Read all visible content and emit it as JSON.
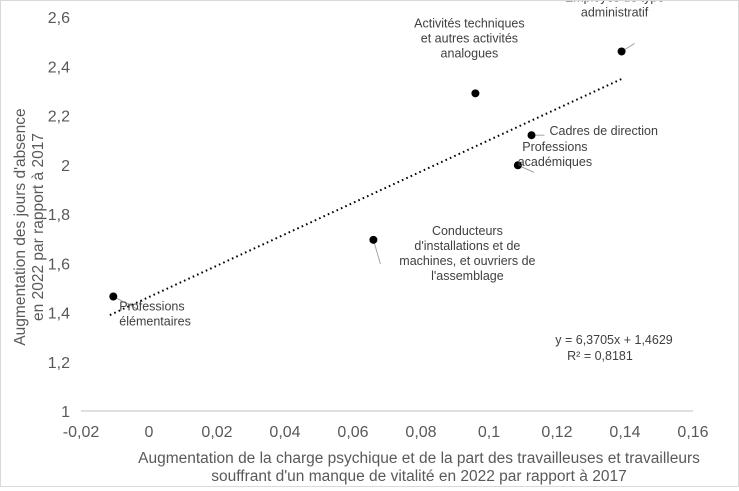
{
  "chart_data": {
    "type": "scatter",
    "title": "",
    "xlabel_lines": [
      "Augmentation de la charge psychique et de la part des travailleuses et travailleurs",
      "souffrant d'un manque de vitalité en 2022 par rapport à 2017"
    ],
    "ylabel_lines": [
      "Augmentation des jours d'absence",
      "en 2022  par rapport à 2017"
    ],
    "xlim": [
      -0.02,
      0.16
    ],
    "ylim": [
      1,
      2.6
    ],
    "x_ticks": [
      -0.02,
      0,
      0.02,
      0.04,
      0.06,
      0.08,
      0.1,
      0.12,
      0.14,
      0.16
    ],
    "x_tick_labels": [
      "-0,02",
      "0",
      "0,02",
      "0,04",
      "0,06",
      "0,08",
      "0,1",
      "0,12",
      "0,14",
      "0,16"
    ],
    "y_ticks": [
      1,
      1.2,
      1.4,
      1.6,
      1.8,
      2,
      2.2,
      2.4,
      2.6
    ],
    "y_tick_labels": [
      "1",
      "1,2",
      "1,4",
      "1,6",
      "1,8",
      "2",
      "2,2",
      "2,4",
      "2,6"
    ],
    "grid": false,
    "points": [
      {
        "name": "Professions élémentaires",
        "label_lines": [
          "Professions",
          "élémentaires"
        ],
        "x": -0.0105,
        "y": 1.465
      },
      {
        "name": "Conducteurs d'installations et de machines, et ouvriers de l'assemblage",
        "label_lines": [
          "Conducteurs",
          "d'installations et de",
          "machines, et ouvriers de",
          "l'assemblage"
        ],
        "x": 0.066,
        "y": 1.695
      },
      {
        "name": "Activités techniques et autres activités analogues",
        "label_lines": [
          "Activités techniques",
          "et autres activités",
          "analogues"
        ],
        "x": 0.096,
        "y": 2.29
      },
      {
        "name": "Professions académiques",
        "label_lines": [
          "Professions",
          "académiques"
        ],
        "x": 0.1085,
        "y": 1.998
      },
      {
        "name": "Cadres de direction",
        "label_lines": [
          "Cadres de direction"
        ],
        "x": 0.1125,
        "y": 2.12
      },
      {
        "name": "Employés de type administratif",
        "label_lines": [
          "Employés de type",
          "administratif"
        ],
        "x": 0.139,
        "y": 2.46
      }
    ],
    "trendline": {
      "type": "linear",
      "slope": 6.3705,
      "intercept": 1.4629,
      "x_range": [
        -0.0115,
        0.139
      ],
      "equation": "y = 6,3705x + 1,4629",
      "r_squared": "R² = 0,8181"
    },
    "colors": {
      "point": "#000000",
      "trendline": "#000000",
      "axis": "#bfbfbf",
      "leader": "#a6a6a6"
    }
  }
}
